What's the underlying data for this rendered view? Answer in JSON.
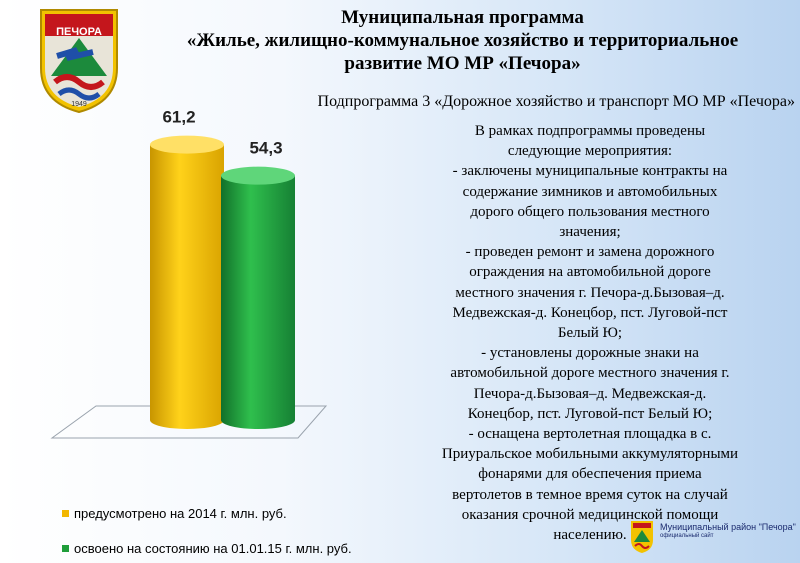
{
  "header": {
    "title_lines": [
      "Муниципальная программа",
      "«Жилье, жилищно-коммунальное хозяйство и территориальное",
      "развитие МО МР «Печора»"
    ],
    "subtitle": "Подпрограмма 3 «Дорожное хозяйство и транспорт МО МР «Печора»"
  },
  "emblem": {
    "label": "ПЕЧОРА",
    "year": "1949"
  },
  "chart_data": {
    "type": "bar",
    "categories": [
      "предусмотрено на 2014 г. млн. руб.",
      "освоено на состоянию на 01.01.15 г. млн. руб."
    ],
    "values": [
      61.2,
      54.3
    ],
    "value_labels": [
      "61,2",
      "54,3"
    ],
    "colors": [
      "#f2b700",
      "#1f9e3a"
    ],
    "style": "3d-cylinder",
    "legend_position": "bottom"
  },
  "legend": {
    "items": [
      {
        "label": "предусмотрено на 2014 г. млн. руб.",
        "color": "#f2b700"
      },
      {
        "label": "освоено на состоянию на 01.01.15 г. млн. руб.",
        "color": "#1f9e3a"
      }
    ]
  },
  "description": {
    "lines": [
      "В рамках подпрограммы проведены",
      "следующие мероприятия:",
      "- заключены муниципальные контракты на",
      "содержание зимников и автомобильных",
      "дорого общего пользования местного",
      "значения;",
      "- проведен ремонт  и замена дорожного",
      "ограждения на автомобильной дороге",
      "местного значения г. Печора-д.Бызовая–д.",
      "Медвежская-д. Конецбор, пст. Луговой-пст",
      "Белый Ю;",
      "- установлены дорожные знаки на",
      "автомобильной дороге местного значения г.",
      "Печора-д.Бызовая–д. Медвежская-д.",
      "Конецбор, пст. Луговой-пст Белый Ю;",
      "- оснащена вертолетная площадка в с.",
      "Приуральское мобильными аккумуляторными",
      "фонарями для обеспечения приема",
      "вертолетов в темное время суток на случай",
      "оказания срочной медицинской помощи",
      "населению."
    ]
  },
  "footer": {
    "org": "Муниципальный район \"Печора\"",
    "sub": "официальный сайт"
  }
}
